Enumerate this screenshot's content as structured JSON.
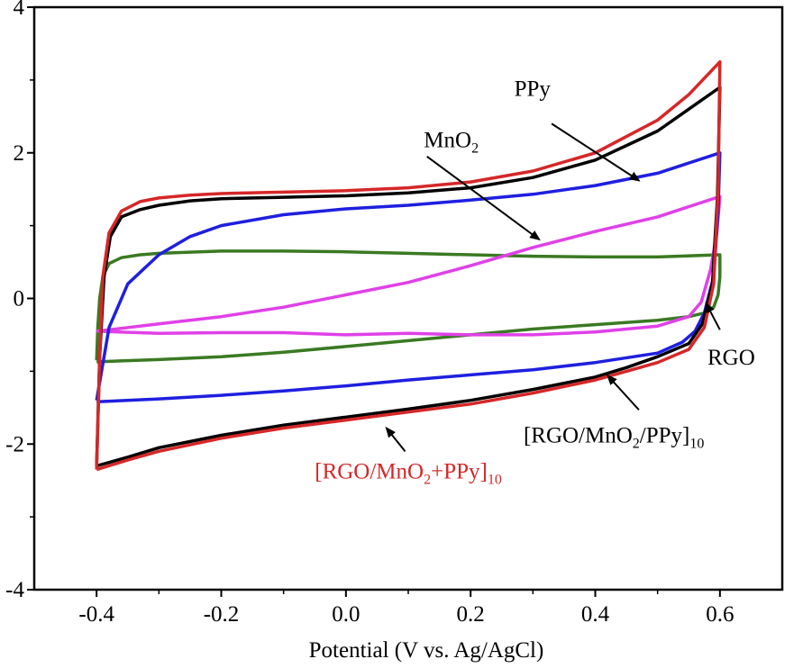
{
  "chart_data": {
    "type": "line",
    "title": "",
    "xlabel": "Potential (V vs. Ag/AgCl)",
    "ylabel": "",
    "xlim": [
      -0.5,
      0.7
    ],
    "ylim": [
      -4,
      4
    ],
    "x_ticks": [
      -0.4,
      -0.2,
      0.0,
      0.2,
      0.4,
      0.6
    ],
    "x_tick_labels": [
      "-0.4",
      "-0.2",
      "0.0",
      "0.2",
      "0.4",
      "0.6"
    ],
    "y_ticks": [
      -4,
      -2,
      0,
      2,
      4
    ],
    "y_tick_labels": [
      "-4",
      "-2",
      "0",
      "2",
      "4"
    ],
    "grid": false,
    "legend": "none",
    "series": [
      {
        "key": "rgo_mno2_plus_ppy",
        "name": "[RGO/MnO2+PPy]10",
        "color": "#d62728",
        "upper": [
          [
            -0.4,
            -2.35
          ],
          [
            -0.395,
            -0.8
          ],
          [
            -0.39,
            0.3
          ],
          [
            -0.38,
            0.9
          ],
          [
            -0.36,
            1.2
          ],
          [
            -0.33,
            1.33
          ],
          [
            -0.3,
            1.38
          ],
          [
            -0.25,
            1.42
          ],
          [
            -0.2,
            1.44
          ],
          [
            -0.1,
            1.46
          ],
          [
            0.0,
            1.48
          ],
          [
            0.1,
            1.52
          ],
          [
            0.2,
            1.6
          ],
          [
            0.3,
            1.75
          ],
          [
            0.4,
            2.0
          ],
          [
            0.5,
            2.45
          ],
          [
            0.55,
            2.8
          ],
          [
            0.6,
            3.25
          ]
        ],
        "lower": [
          [
            0.6,
            3.25
          ],
          [
            0.597,
            1.5
          ],
          [
            0.59,
            0.2
          ],
          [
            0.575,
            -0.4
          ],
          [
            0.55,
            -0.7
          ],
          [
            0.5,
            -0.88
          ],
          [
            0.45,
            -1.0
          ],
          [
            0.4,
            -1.12
          ],
          [
            0.3,
            -1.3
          ],
          [
            0.2,
            -1.45
          ],
          [
            0.1,
            -1.56
          ],
          [
            0.0,
            -1.67
          ],
          [
            -0.1,
            -1.78
          ],
          [
            -0.2,
            -1.92
          ],
          [
            -0.3,
            -2.1
          ],
          [
            -0.35,
            -2.22
          ],
          [
            -0.4,
            -2.35
          ]
        ]
      },
      {
        "key": "rgo_mno2_ppy_layered",
        "name": "[RGO/MnO2/PPy]10",
        "color": "#000000",
        "upper": [
          [
            -0.4,
            -2.3
          ],
          [
            -0.395,
            -0.8
          ],
          [
            -0.388,
            0.3
          ],
          [
            -0.378,
            0.85
          ],
          [
            -0.36,
            1.12
          ],
          [
            -0.33,
            1.22
          ],
          [
            -0.3,
            1.28
          ],
          [
            -0.25,
            1.34
          ],
          [
            -0.2,
            1.37
          ],
          [
            -0.1,
            1.39
          ],
          [
            0.0,
            1.41
          ],
          [
            0.1,
            1.45
          ],
          [
            0.2,
            1.52
          ],
          [
            0.3,
            1.66
          ],
          [
            0.4,
            1.9
          ],
          [
            0.5,
            2.3
          ],
          [
            0.55,
            2.6
          ],
          [
            0.6,
            2.9
          ]
        ],
        "lower": [
          [
            0.6,
            2.9
          ],
          [
            0.596,
            1.4
          ],
          [
            0.588,
            0.2
          ],
          [
            0.572,
            -0.35
          ],
          [
            0.55,
            -0.62
          ],
          [
            0.5,
            -0.8
          ],
          [
            0.45,
            -0.95
          ],
          [
            0.4,
            -1.08
          ],
          [
            0.3,
            -1.25
          ],
          [
            0.2,
            -1.4
          ],
          [
            0.1,
            -1.52
          ],
          [
            0.0,
            -1.63
          ],
          [
            -0.1,
            -1.74
          ],
          [
            -0.2,
            -1.88
          ],
          [
            -0.3,
            -2.05
          ],
          [
            -0.35,
            -2.18
          ],
          [
            -0.4,
            -2.3
          ]
        ]
      },
      {
        "key": "ppy",
        "name": "PPy",
        "color": "#1f1fe0",
        "upper": [
          [
            -0.4,
            -1.4
          ],
          [
            -0.38,
            -0.4
          ],
          [
            -0.35,
            0.2
          ],
          [
            -0.3,
            0.6
          ],
          [
            -0.25,
            0.85
          ],
          [
            -0.2,
            1.0
          ],
          [
            -0.1,
            1.15
          ],
          [
            0.0,
            1.23
          ],
          [
            0.1,
            1.28
          ],
          [
            0.2,
            1.35
          ],
          [
            0.3,
            1.43
          ],
          [
            0.4,
            1.55
          ],
          [
            0.5,
            1.72
          ],
          [
            0.6,
            2.0
          ]
        ],
        "lower": [
          [
            0.6,
            2.0
          ],
          [
            0.597,
            1.2
          ],
          [
            0.59,
            0.3
          ],
          [
            0.575,
            -0.2
          ],
          [
            0.56,
            -0.45
          ],
          [
            0.54,
            -0.6
          ],
          [
            0.5,
            -0.75
          ],
          [
            0.4,
            -0.88
          ],
          [
            0.3,
            -0.98
          ],
          [
            0.2,
            -1.05
          ],
          [
            0.1,
            -1.12
          ],
          [
            0.0,
            -1.2
          ],
          [
            -0.1,
            -1.27
          ],
          [
            -0.2,
            -1.33
          ],
          [
            -0.3,
            -1.38
          ],
          [
            -0.4,
            -1.42
          ]
        ]
      },
      {
        "key": "mno2",
        "name": "MnO2",
        "color": "#e040e8",
        "upper": [
          [
            -0.4,
            -0.45
          ],
          [
            -0.3,
            -0.35
          ],
          [
            -0.2,
            -0.25
          ],
          [
            -0.1,
            -0.12
          ],
          [
            0.0,
            0.05
          ],
          [
            0.1,
            0.22
          ],
          [
            0.2,
            0.45
          ],
          [
            0.3,
            0.7
          ],
          [
            0.4,
            0.92
          ],
          [
            0.5,
            1.12
          ],
          [
            0.6,
            1.4
          ]
        ],
        "lower": [
          [
            0.6,
            1.4
          ],
          [
            0.595,
            0.9
          ],
          [
            0.585,
            0.4
          ],
          [
            0.57,
            -0.05
          ],
          [
            0.55,
            -0.25
          ],
          [
            0.5,
            -0.38
          ],
          [
            0.4,
            -0.46
          ],
          [
            0.3,
            -0.5
          ],
          [
            0.2,
            -0.5
          ],
          [
            0.1,
            -0.48
          ],
          [
            0.0,
            -0.5
          ],
          [
            -0.1,
            -0.47
          ],
          [
            -0.2,
            -0.47
          ],
          [
            -0.3,
            -0.48
          ],
          [
            -0.4,
            -0.45
          ]
        ]
      },
      {
        "key": "rgo",
        "name": "RGO",
        "color": "#3a7a22",
        "upper": [
          [
            -0.4,
            -0.85
          ],
          [
            -0.398,
            -0.4
          ],
          [
            -0.395,
            0.0
          ],
          [
            -0.39,
            0.3
          ],
          [
            -0.38,
            0.48
          ],
          [
            -0.36,
            0.56
          ],
          [
            -0.33,
            0.6
          ],
          [
            -0.3,
            0.62
          ],
          [
            -0.2,
            0.65
          ],
          [
            -0.1,
            0.65
          ],
          [
            0.0,
            0.64
          ],
          [
            0.1,
            0.62
          ],
          [
            0.2,
            0.6
          ],
          [
            0.3,
            0.58
          ],
          [
            0.4,
            0.57
          ],
          [
            0.5,
            0.57
          ],
          [
            0.6,
            0.6
          ]
        ],
        "lower": [
          [
            0.6,
            0.6
          ],
          [
            0.6,
            0.3
          ],
          [
            0.597,
            0.05
          ],
          [
            0.59,
            -0.12
          ],
          [
            0.575,
            -0.2
          ],
          [
            0.55,
            -0.25
          ],
          [
            0.5,
            -0.3
          ],
          [
            0.4,
            -0.36
          ],
          [
            0.3,
            -0.42
          ],
          [
            0.2,
            -0.5
          ],
          [
            0.1,
            -0.58
          ],
          [
            0.0,
            -0.66
          ],
          [
            -0.1,
            -0.74
          ],
          [
            -0.2,
            -0.8
          ],
          [
            -0.3,
            -0.84
          ],
          [
            -0.4,
            -0.87
          ]
        ]
      }
    ],
    "annotations": [
      {
        "key": "ppy",
        "color": "#000000",
        "text": "PPy",
        "sub": "",
        "tail": "",
        "text_x": 0.27,
        "text_y": 2.78,
        "arrow_from": [
          0.33,
          2.4
        ],
        "arrow_to": [
          0.47,
          1.62
        ]
      },
      {
        "key": "mno2",
        "color": "#000000",
        "text": "MnO",
        "sub": "2",
        "tail": "",
        "text_x": 0.125,
        "text_y": 2.08,
        "arrow_from": [
          0.13,
          1.95
        ],
        "arrow_to": [
          0.31,
          0.81
        ]
      },
      {
        "key": "rgo",
        "color": "#000000",
        "text": "RGO",
        "sub": "",
        "tail": "",
        "text_x": 0.58,
        "text_y": -0.91,
        "arrow_from": [
          0.6,
          -0.43
        ],
        "arrow_to": [
          0.578,
          -0.07
        ]
      },
      {
        "key": "layered",
        "color": "#000000",
        "text": "[RGO/MnO",
        "sub": "2",
        "tail": "/PPy]",
        "tail_sub": "10",
        "text_x": 0.285,
        "text_y": -1.98,
        "arrow_from": [
          0.47,
          -1.53
        ],
        "arrow_to": [
          0.42,
          -1.06
        ]
      },
      {
        "key": "plus",
        "color": "#d62728",
        "text": "[RGO/MnO",
        "sub": "2",
        "tail": "+PPy]",
        "tail_sub": "10",
        "text_x": -0.05,
        "text_y": -2.47,
        "arrow_from": [
          0.095,
          -2.1
        ],
        "arrow_to": [
          0.065,
          -1.78
        ]
      }
    ]
  }
}
